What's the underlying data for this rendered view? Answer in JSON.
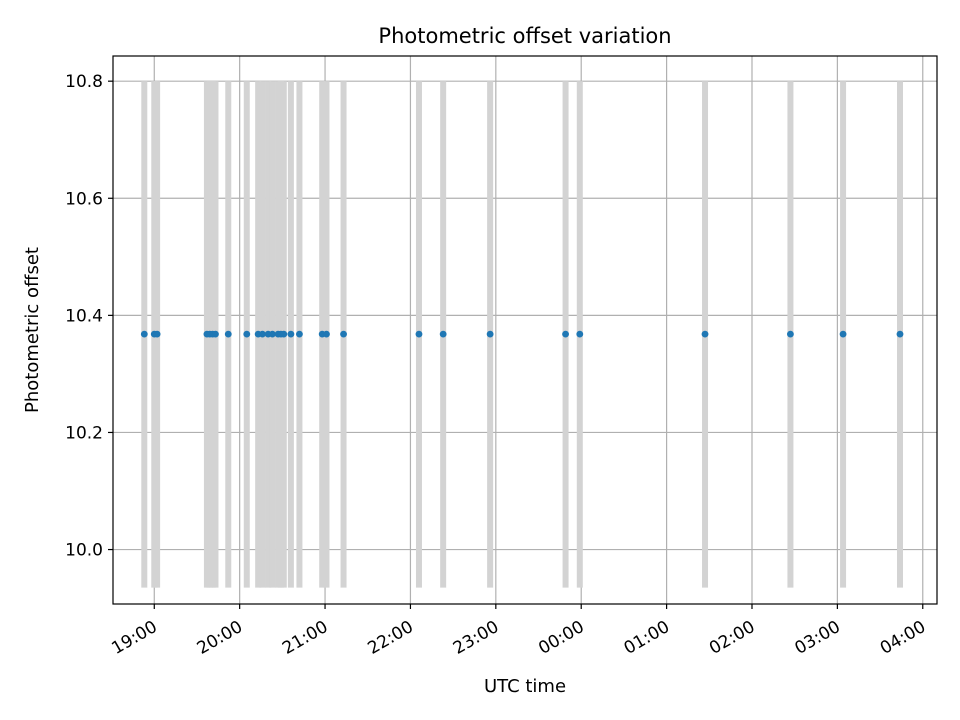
{
  "chart_data": {
    "type": "scatter",
    "title": "Photometric offset variation",
    "xlabel": "UTC time",
    "ylabel": "Photometric offset",
    "x_axis_kind": "utc-time",
    "x_range": [
      "18:31",
      "04:10"
    ],
    "ylim": [
      9.907,
      10.843
    ],
    "grid": true,
    "x_ticks": [
      "19:00",
      "20:00",
      "21:00",
      "22:00",
      "23:00",
      "00:00",
      "01:00",
      "02:00",
      "03:00",
      "04:00"
    ],
    "y_ticks": [
      "10.0",
      "10.2",
      "10.4",
      "10.6",
      "10.8"
    ],
    "y_tick_values": [
      10.0,
      10.2,
      10.4,
      10.6,
      10.8
    ],
    "series": [
      {
        "points": [
          {
            "t": "18:53",
            "y": 10.368
          },
          {
            "t": "19:00",
            "y": 10.368
          },
          {
            "t": "19:02",
            "y": 10.368
          },
          {
            "t": "19:37",
            "y": 10.368
          },
          {
            "t": "19:39",
            "y": 10.368
          },
          {
            "t": "19:41",
            "y": 10.368
          },
          {
            "t": "19:43",
            "y": 10.368
          },
          {
            "t": "19:52",
            "y": 10.368
          },
          {
            "t": "20:05",
            "y": 10.368
          },
          {
            "t": "20:13",
            "y": 10.368
          },
          {
            "t": "20:16",
            "y": 10.368
          },
          {
            "t": "20:20",
            "y": 10.368
          },
          {
            "t": "20:23",
            "y": 10.368
          },
          {
            "t": "20:27",
            "y": 10.368
          },
          {
            "t": "20:29",
            "y": 10.368
          },
          {
            "t": "20:31",
            "y": 10.368
          },
          {
            "t": "20:36",
            "y": 10.368
          },
          {
            "t": "20:42",
            "y": 10.368
          },
          {
            "t": "20:58",
            "y": 10.368
          },
          {
            "t": "21:01",
            "y": 10.368
          },
          {
            "t": "21:13",
            "y": 10.368
          },
          {
            "t": "22:06",
            "y": 10.368
          },
          {
            "t": "22:23",
            "y": 10.368
          },
          {
            "t": "22:56",
            "y": 10.368
          },
          {
            "t": "23:49",
            "y": 10.368
          },
          {
            "t": "23:59",
            "y": 10.368
          },
          {
            "t": "01:27",
            "y": 10.368
          },
          {
            "t": "02:27",
            "y": 10.368
          },
          {
            "t": "03:04",
            "y": 10.368
          },
          {
            "t": "03:44",
            "y": 10.368
          }
        ],
        "error_range": [
          9.935,
          10.8
        ],
        "marker_color": "#1f77b4",
        "error_color": "#d3d3d3"
      }
    ]
  }
}
